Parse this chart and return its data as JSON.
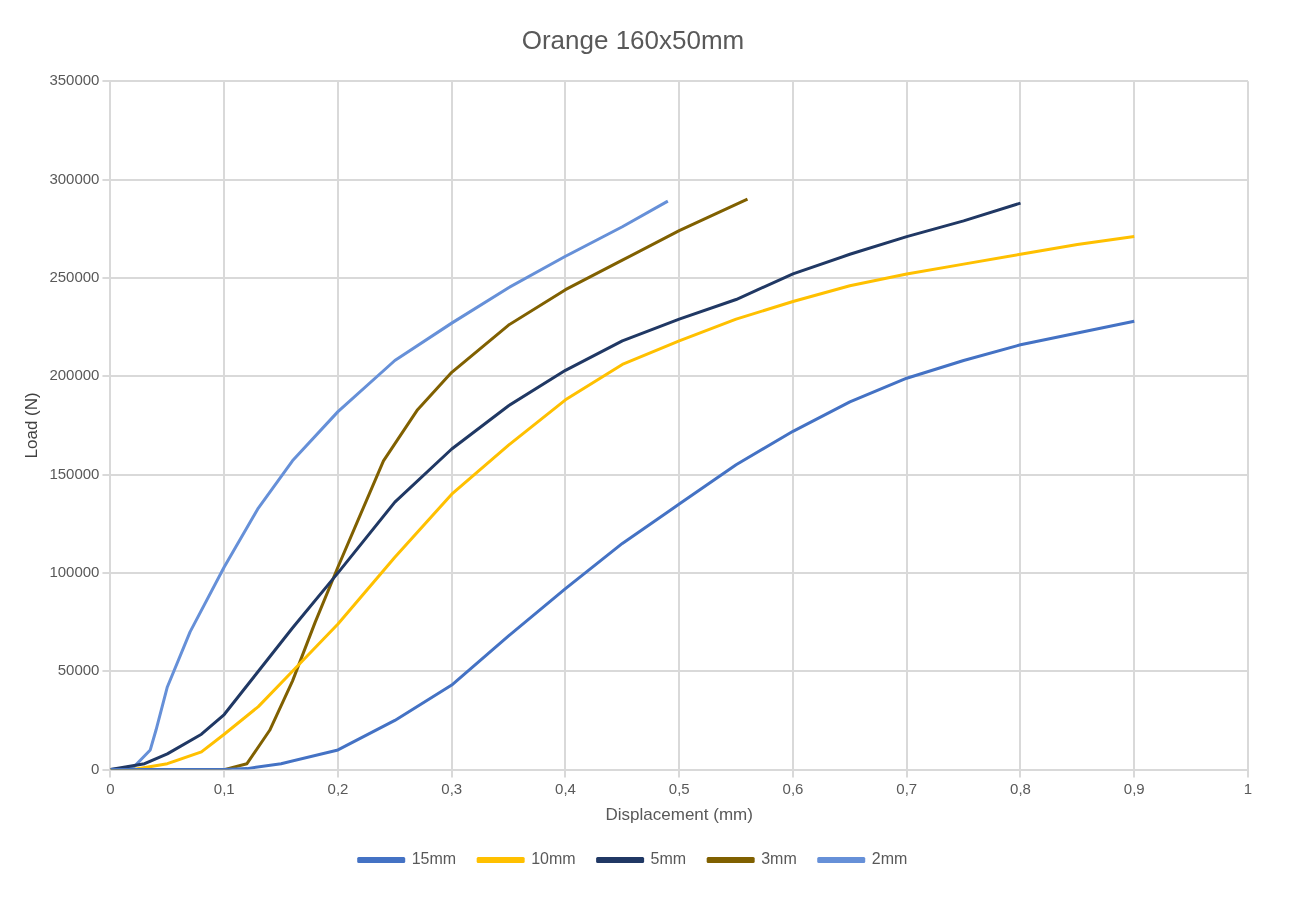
{
  "chart_data": {
    "type": "line",
    "title": "Orange 160x50mm",
    "xlabel": "Displacement (mm)",
    "ylabel": "Load (N)",
    "xlim": [
      0,
      1
    ],
    "ylim": [
      0,
      350000
    ],
    "xticks": [
      0,
      {
        "value": 0.1,
        "label": "0,1"
      },
      {
        "value": 0.2,
        "label": "0,2"
      },
      {
        "value": 0.3,
        "label": "0,3"
      },
      {
        "value": 0.4,
        "label": "0,4"
      },
      {
        "value": 0.5,
        "label": "0,5"
      },
      {
        "value": 0.6,
        "label": "0,6"
      },
      {
        "value": 0.7,
        "label": "0,7"
      },
      {
        "value": 0.8,
        "label": "0,8"
      },
      {
        "value": 0.9,
        "label": "0,9"
      },
      1
    ],
    "yticks": [
      0,
      50000,
      100000,
      150000,
      200000,
      250000,
      300000,
      350000
    ],
    "grid": true,
    "legend": "bottom",
    "marker": "none",
    "line_style": "solid",
    "series": [
      {
        "name": "15mm",
        "color": "#4472c4",
        "x": [
          0,
          0.1,
          0.12,
          0.15,
          0.2,
          0.25,
          0.3,
          0.35,
          0.4,
          0.45,
          0.5,
          0.55,
          0.6,
          0.65,
          0.7,
          0.75,
          0.8,
          0.85,
          0.9
        ],
        "values": [
          0,
          0,
          500,
          3000,
          10000,
          25000,
          43000,
          68000,
          92000,
          115000,
          135000,
          155000,
          172000,
          187000,
          199000,
          208000,
          216000,
          222000,
          228000
        ]
      },
      {
        "name": "10mm",
        "color": "#ffc000",
        "x": [
          0,
          0.02,
          0.05,
          0.08,
          0.1,
          0.13,
          0.16,
          0.2,
          0.25,
          0.3,
          0.35,
          0.4,
          0.45,
          0.5,
          0.55,
          0.6,
          0.65,
          0.7,
          0.75,
          0.8,
          0.85,
          0.9
        ],
        "values": [
          0,
          0,
          3000,
          9000,
          18000,
          32000,
          50000,
          74000,
          108000,
          140000,
          165000,
          188000,
          206000,
          218000,
          229000,
          238000,
          246000,
          252000,
          257000,
          262000,
          267000,
          271000
        ]
      },
      {
        "name": "5mm",
        "color": "#203864",
        "x": [
          0,
          0.03,
          0.05,
          0.08,
          0.1,
          0.13,
          0.16,
          0.2,
          0.25,
          0.3,
          0.35,
          0.4,
          0.45,
          0.5,
          0.55,
          0.6,
          0.65,
          0.7,
          0.75,
          0.8
        ],
        "values": [
          0,
          3000,
          8000,
          18000,
          28000,
          50000,
          72000,
          100000,
          136000,
          163000,
          185000,
          203000,
          218000,
          229000,
          239000,
          252000,
          262000,
          271000,
          279000,
          288000
        ]
      },
      {
        "name": "3mm",
        "color": "#806000",
        "x": [
          0,
          0.02,
          0.1,
          0.12,
          0.14,
          0.16,
          0.18,
          0.2,
          0.22,
          0.24,
          0.27,
          0.3,
          0.35,
          0.4,
          0.45,
          0.5,
          0.56
        ],
        "values": [
          0,
          0,
          0,
          3000,
          20000,
          45000,
          75000,
          103000,
          130000,
          157000,
          183000,
          202000,
          226000,
          244000,
          259000,
          274000,
          290000
        ]
      },
      {
        "name": "2mm",
        "color": "#6690d8",
        "x": [
          0,
          0.02,
          0.035,
          0.04,
          0.05,
          0.07,
          0.1,
          0.13,
          0.16,
          0.2,
          0.25,
          0.3,
          0.35,
          0.4,
          0.45,
          0.49
        ],
        "values": [
          0,
          1000,
          10000,
          20000,
          42000,
          70000,
          103000,
          133000,
          157000,
          182000,
          208000,
          227000,
          245000,
          261000,
          276000,
          289000
        ]
      }
    ]
  }
}
